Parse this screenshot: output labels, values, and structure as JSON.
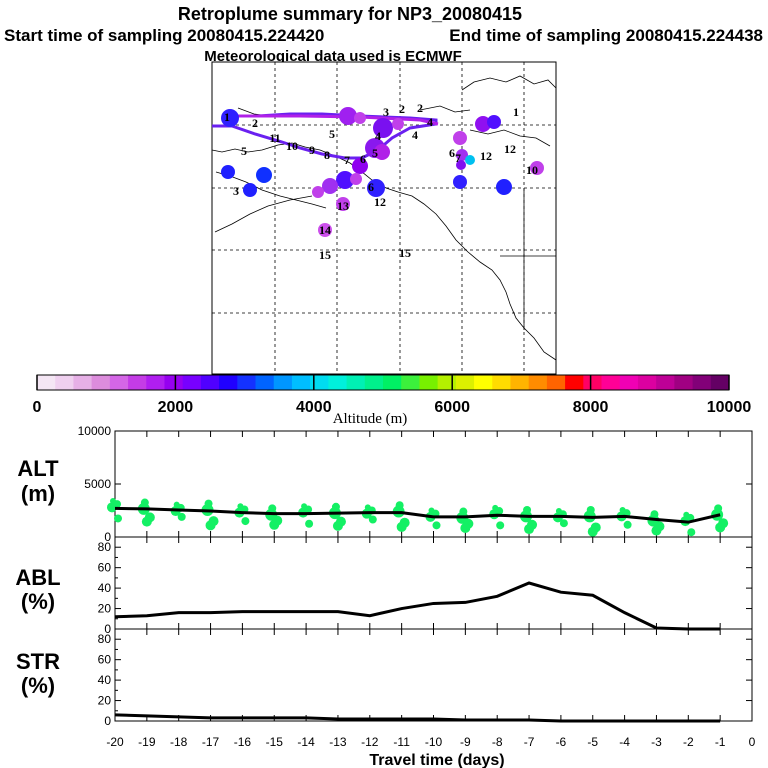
{
  "title": "Retroplume summary for NP3_20080415",
  "subtitle_start": "Start time of sampling 20080415.224420",
  "subtitle_end": "End time of sampling 20080415.224438",
  "subtitle_met": "Meteorological data used is ECMWF",
  "colorbar": {
    "label": "Altitude (m)",
    "ticks": [
      "0",
      "2000",
      "4000",
      "6000",
      "8000",
      "10000"
    ],
    "min": 0,
    "max": 10000,
    "colors": [
      "#f4e6f4",
      "#efd0ef",
      "#e6b0e6",
      "#dc8cdc",
      "#d466e6",
      "#c43ce6",
      "#b01ef0",
      "#9600f0",
      "#7800ff",
      "#5000ff",
      "#2000ff",
      "#1432ff",
      "#0064ff",
      "#0096ff",
      "#00beff",
      "#00dcf0",
      "#00f0dc",
      "#00f0b4",
      "#00f08c",
      "#00f064",
      "#3cf03c",
      "#78f000",
      "#b4f000",
      "#dcf000",
      "#ffff00",
      "#ffdc00",
      "#ffb400",
      "#ff8c00",
      "#ff6400",
      "#ff0000",
      "#ff0064",
      "#ff0096",
      "#f000b4",
      "#dc00a0",
      "#be0096",
      "#a00082",
      "#820078",
      "#640064"
    ]
  },
  "map": {
    "point_labels": [
      "1",
      "2",
      "3",
      "4",
      "5",
      "6",
      "7",
      "8",
      "9",
      "10",
      "11",
      "12",
      "13",
      "14",
      "15"
    ]
  },
  "chart_data": [
    {
      "type": "scatter",
      "panel": "ALT",
      "ylabel_line1": "ALT",
      "ylabel_line2": "(m)",
      "ylim": [
        0,
        10000
      ],
      "yticks": [
        "10000",
        "5000",
        "0"
      ],
      "x": [
        -20,
        -19,
        -18,
        -17,
        -16,
        -15,
        -14,
        -13,
        -12,
        -11,
        -10,
        -9,
        -8,
        -7,
        -6,
        -5,
        -4,
        -3,
        -2,
        -1
      ],
      "line_values": [
        2700,
        2650,
        2550,
        2450,
        2300,
        2200,
        2200,
        2250,
        2300,
        2300,
        1900,
        1900,
        2050,
        1950,
        1950,
        1850,
        1950,
        1650,
        1400,
        2100
      ],
      "point_color": "#14f064"
    },
    {
      "type": "line",
      "panel": "ABL",
      "ylabel_line1": "ABL",
      "ylabel_line2": "(%)",
      "ylim": [
        0,
        90
      ],
      "yticks": [
        "80",
        "60",
        "40",
        "20",
        "0"
      ],
      "x": [
        -20,
        -19,
        -18,
        -17,
        -16,
        -15,
        -14,
        -13,
        -12,
        -11,
        -10,
        -9,
        -8,
        -7,
        -6,
        -5,
        -4,
        -3,
        -2,
        -1
      ],
      "values": [
        12,
        13,
        16,
        16,
        17,
        17,
        17,
        17,
        13,
        20,
        25,
        26,
        32,
        45,
        36,
        33,
        16,
        1,
        0,
        0
      ]
    },
    {
      "type": "line",
      "panel": "STR",
      "ylabel_line1": "STR",
      "ylabel_line2": "(%)",
      "ylim": [
        0,
        90
      ],
      "yticks": [
        "80",
        "60",
        "40",
        "20",
        "0"
      ],
      "x": [
        -20,
        -19,
        -18,
        -17,
        -16,
        -15,
        -14,
        -13,
        -12,
        -11,
        -10,
        -9,
        -8,
        -7,
        -6,
        -5,
        -4,
        -3,
        -2,
        -1
      ],
      "values": [
        6,
        5,
        4,
        3,
        3,
        3,
        3,
        2,
        2,
        2,
        2,
        1,
        1,
        1,
        0,
        0,
        0,
        0,
        0,
        0
      ]
    }
  ],
  "xaxis": {
    "label": "Travel time (days)",
    "ticks": [
      "-20",
      "-19",
      "-18",
      "-17",
      "-16",
      "-15",
      "-14",
      "-13",
      "-12",
      "-11",
      "-10",
      "-9",
      "-8",
      "-7",
      "-6",
      "-5",
      "-4",
      "-3",
      "-2",
      "-1",
      "0"
    ]
  }
}
